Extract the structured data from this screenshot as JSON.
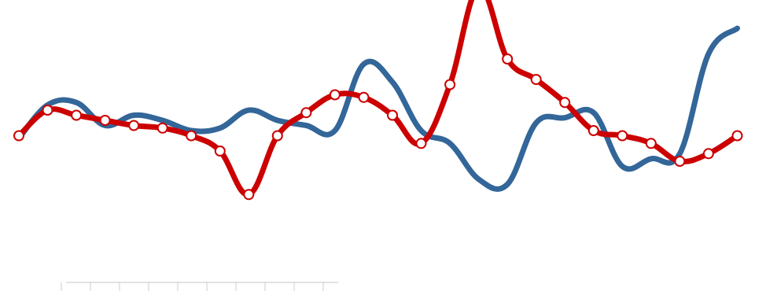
{
  "chart_data": {
    "type": "line",
    "title": "",
    "xlabel": "",
    "ylabel": "",
    "smooth": true,
    "grid": false,
    "x": [
      0,
      1,
      2,
      3,
      4,
      5,
      6,
      7,
      8,
      9,
      10,
      11,
      12,
      13,
      14,
      15,
      16,
      17,
      18,
      19,
      20,
      21,
      22,
      23,
      24,
      25
    ],
    "xlim": [
      0,
      26
    ],
    "ylim": [
      0,
      10
    ],
    "series": [
      {
        "color": "#336699",
        "marker": "none",
        "values": [
          4.9,
          6.2,
          6.3,
          5.4,
          5.8,
          5.6,
          5.2,
          5.3,
          6.0,
          5.6,
          5.4,
          5.2,
          7.8,
          7.1,
          5.2,
          4.7,
          3.3,
          3.1,
          5.5,
          5.7,
          5.9,
          3.8,
          4.1,
          4.3,
          8.2,
          9.2
        ]
      },
      {
        "color": "#cc0000",
        "marker": "circle",
        "values": [
          5.0,
          6.0,
          5.8,
          5.6,
          5.4,
          5.3,
          5.0,
          4.4,
          2.7,
          5.0,
          5.9,
          6.6,
          6.5,
          5.8,
          4.7,
          7.0,
          10.8,
          8.0,
          7.2,
          6.3,
          5.2,
          5.0,
          4.7,
          4.0,
          4.3,
          5.0
        ]
      }
    ]
  }
}
